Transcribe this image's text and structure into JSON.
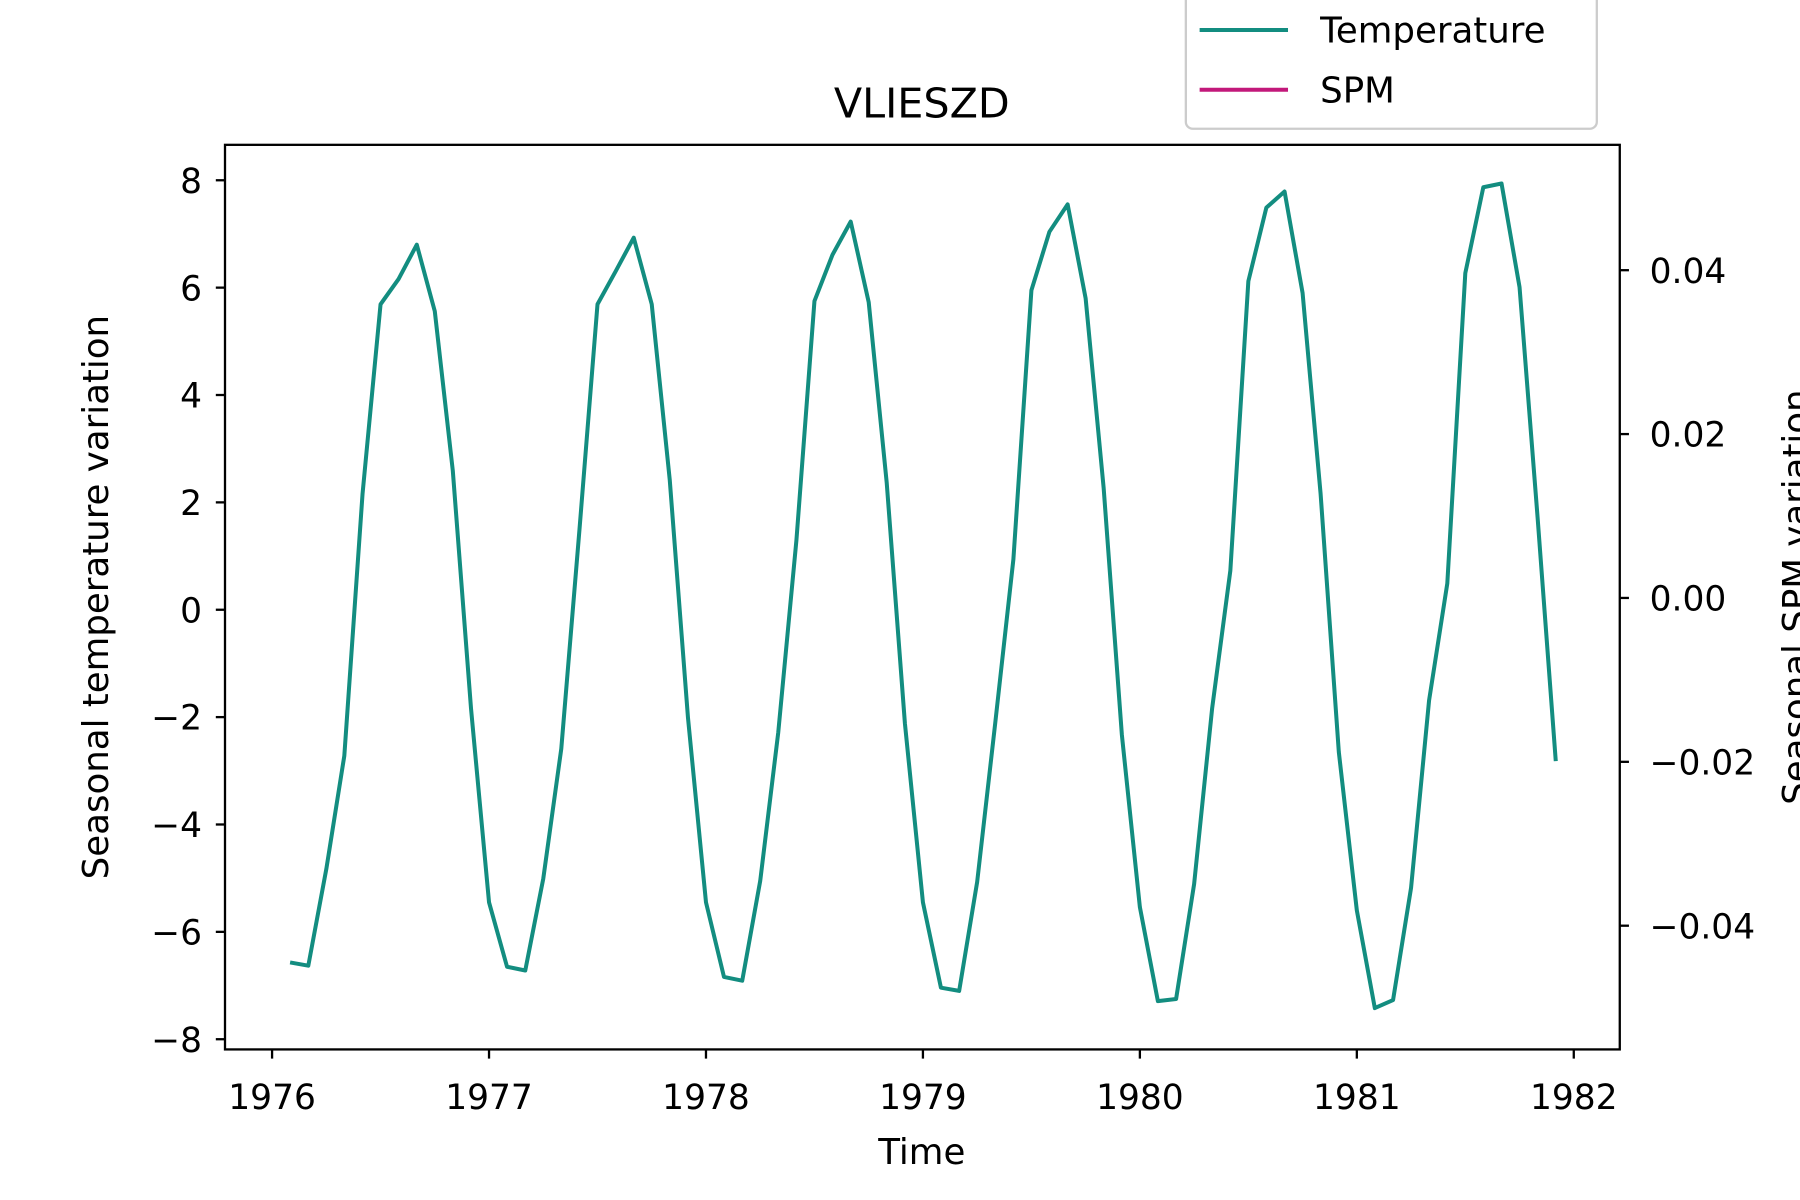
{
  "chart_data": {
    "type": "line",
    "title": "VLIESZD",
    "x_label": "Time",
    "y_label": "Seasonal temperature variation",
    "y2_label": "Seasonal SPM variation",
    "x": [
      1976.083,
      1976.167,
      1976.25,
      1976.333,
      1976.417,
      1976.5,
      1976.583,
      1976.667,
      1976.75,
      1976.833,
      1976.917,
      1977,
      1977.083,
      1977.167,
      1977.25,
      1977.333,
      1977.417,
      1977.5,
      1977.583,
      1977.667,
      1977.75,
      1977.833,
      1977.917,
      1978,
      1978.083,
      1978.167,
      1978.25,
      1978.333,
      1978.417,
      1978.5,
      1978.583,
      1978.667,
      1978.75,
      1978.833,
      1978.917,
      1979,
      1979.083,
      1979.167,
      1979.25,
      1979.333,
      1979.417,
      1979.5,
      1979.583,
      1979.667,
      1979.75,
      1979.833,
      1979.917,
      1980,
      1980.083,
      1980.167,
      1980.25,
      1980.333,
      1980.417,
      1980.5,
      1980.583,
      1980.667,
      1980.75,
      1980.833,
      1980.917,
      1981,
      1981.083,
      1981.167,
      1981.25,
      1981.333,
      1981.417,
      1981.5,
      1981.583,
      1981.667,
      1981.75,
      1981.833,
      1981.917
    ],
    "series": [
      {
        "name": "Temperature",
        "color": "#138d80",
        "axis": "y",
        "values": [
          -6.57,
          -6.63,
          -4.83,
          -2.72,
          2.16,
          5.69,
          6.16,
          6.8,
          5.56,
          2.59,
          -1.84,
          -5.45,
          -6.65,
          -6.72,
          -5.01,
          -2.59,
          1.5,
          5.69,
          6.3,
          6.93,
          5.69,
          2.42,
          -2.01,
          -5.45,
          -6.84,
          -6.91,
          -5.05,
          -2.29,
          1.3,
          5.75,
          6.61,
          7.23,
          5.73,
          2.37,
          -2.12,
          -5.45,
          -7.04,
          -7.1,
          -5.07,
          -2.12,
          0.94,
          5.95,
          7.04,
          7.55,
          5.8,
          2.27,
          -2.33,
          -5.54,
          -7.29,
          -7.25,
          -5.11,
          -1.84,
          0.73,
          6.12,
          7.49,
          7.79,
          5.9,
          2.16,
          -2.65,
          -5.6,
          -7.42,
          -7.27,
          -5.18,
          -1.69,
          0.49,
          6.27,
          7.87,
          7.94,
          6.01,
          1.73,
          -2.82
        ]
      },
      {
        "name": "SPM",
        "color": "#c2187a",
        "axis": "y2",
        "values": [
          null,
          null,
          null,
          null,
          null,
          null,
          null,
          null,
          null,
          null,
          null,
          null,
          null,
          null,
          null,
          null,
          null,
          null,
          null,
          null,
          null,
          null,
          null,
          null,
          null,
          null,
          null,
          null,
          null,
          null,
          null,
          null,
          null,
          null,
          null,
          null,
          null,
          null,
          null,
          null,
          null,
          null,
          null,
          null,
          null,
          null,
          null,
          null,
          null,
          null,
          null,
          null,
          null,
          null,
          null,
          null,
          null,
          null,
          null,
          null,
          null,
          null,
          null,
          null,
          null,
          null,
          null,
          null,
          null,
          null,
          null
        ]
      }
    ],
    "xlim": [
      1975.783,
      1982.212
    ],
    "xticks": [
      1976,
      1977,
      1978,
      1979,
      1980,
      1981,
      1982
    ],
    "ylim": [
      -8.19,
      8.66
    ],
    "yticks": [
      {
        "value": -8,
        "label": "−8"
      },
      {
        "value": -6,
        "label": "−6"
      },
      {
        "value": -4,
        "label": "−4"
      },
      {
        "value": -2,
        "label": "−2"
      },
      0,
      2,
      4,
      6,
      8
    ],
    "y2lim": [
      -0.0551,
      0.0553
    ],
    "y2ticks": [
      {
        "value": -0.04,
        "label": "−0.04"
      },
      {
        "value": -0.02,
        "label": "−0.02"
      },
      {
        "value": 0,
        "label": "0.00"
      },
      0.02,
      0.04
    ],
    "grid": false
  }
}
